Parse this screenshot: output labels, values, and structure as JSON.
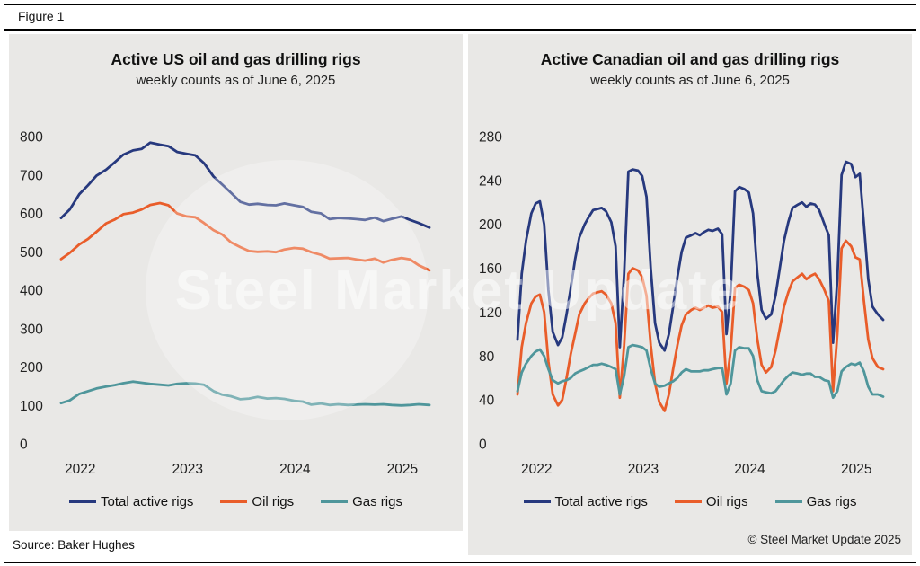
{
  "figure_label": "Figure 1",
  "source": "Source: Baker Hughes",
  "copyright": "© Steel Market Update 2025",
  "watermark": "Steel Market Update",
  "colors": {
    "total": "#27397e",
    "oil": "#e95d2a",
    "gas": "#4f969b",
    "panel_bg": "#e9e8e6"
  },
  "chart_data": [
    {
      "type": "line",
      "title": "Active US oil and gas drilling rigs",
      "subtitle": "weekly counts as of June 6, 2025",
      "xlabel": "",
      "ylabel": "",
      "xlim": [
        2022,
        2025.43
      ],
      "ylim": [
        0,
        800
      ],
      "x_ticks": [
        2022,
        2023,
        2024,
        2025
      ],
      "y_ticks": [
        0,
        100,
        200,
        300,
        400,
        500,
        600,
        700,
        800
      ],
      "grid": false,
      "legend_position": "bottom",
      "x": [
        2022.0,
        2022.08,
        2022.17,
        2022.25,
        2022.33,
        2022.42,
        2022.5,
        2022.58,
        2022.67,
        2022.75,
        2022.83,
        2022.92,
        2023.0,
        2023.08,
        2023.17,
        2023.25,
        2023.33,
        2023.42,
        2023.5,
        2023.58,
        2023.67,
        2023.75,
        2023.83,
        2023.92,
        2024.0,
        2024.08,
        2024.17,
        2024.25,
        2024.33,
        2024.42,
        2024.5,
        2024.58,
        2024.67,
        2024.75,
        2024.83,
        2024.92,
        2025.0,
        2025.08,
        2025.17,
        2025.25,
        2025.33,
        2025.43
      ],
      "series": [
        {
          "name": "Total active rigs",
          "color_key": "total",
          "values": [
            588,
            610,
            650,
            673,
            698,
            714,
            733,
            753,
            764,
            768,
            784,
            779,
            775,
            760,
            755,
            751,
            731,
            696,
            675,
            654,
            630,
            623,
            625,
            622,
            621,
            626,
            621,
            617,
            604,
            600,
            585,
            588,
            587,
            585,
            583,
            589,
            580,
            586,
            592,
            583,
            575,
            563
          ]
        },
        {
          "name": "Oil rigs",
          "color_key": "oil",
          "values": [
            481,
            497,
            519,
            533,
            552,
            574,
            584,
            598,
            602,
            610,
            622,
            627,
            621,
            600,
            592,
            590,
            575,
            556,
            545,
            525,
            512,
            502,
            500,
            501,
            499,
            506,
            510,
            508,
            499,
            492,
            482,
            483,
            484,
            480,
            477,
            482,
            472,
            479,
            484,
            480,
            465,
            452
          ]
        },
        {
          "name": "Gas rigs",
          "color_key": "gas",
          "values": [
            106,
            113,
            130,
            137,
            144,
            149,
            153,
            158,
            162,
            159,
            156,
            154,
            152,
            156,
            158,
            157,
            154,
            137,
            128,
            124,
            116,
            118,
            122,
            118,
            119,
            117,
            112,
            110,
            102,
            105,
            101,
            103,
            101,
            102,
            103,
            102,
            103,
            101,
            100,
            101,
            103,
            101
          ]
        }
      ]
    },
    {
      "type": "line",
      "title": "Active Canadian oil and gas drilling rigs",
      "subtitle": "weekly counts as of June 6, 2025",
      "xlabel": "",
      "ylabel": "",
      "xlim": [
        2022,
        2025.43
      ],
      "ylim": [
        0,
        280
      ],
      "x_ticks": [
        2022,
        2023,
        2024,
        2025
      ],
      "y_ticks": [
        0,
        40,
        80,
        120,
        160,
        200,
        240,
        280
      ],
      "grid": false,
      "legend_position": "bottom",
      "x": [
        2022.0,
        2022.04,
        2022.08,
        2022.13,
        2022.17,
        2022.21,
        2022.25,
        2022.29,
        2022.33,
        2022.38,
        2022.42,
        2022.46,
        2022.5,
        2022.54,
        2022.58,
        2022.63,
        2022.67,
        2022.71,
        2022.75,
        2022.79,
        2022.83,
        2022.88,
        2022.92,
        2022.96,
        2023.0,
        2023.04,
        2023.08,
        2023.13,
        2023.17,
        2023.21,
        2023.25,
        2023.29,
        2023.33,
        2023.38,
        2023.42,
        2023.46,
        2023.5,
        2023.54,
        2023.58,
        2023.63,
        2023.67,
        2023.71,
        2023.75,
        2023.79,
        2023.83,
        2023.88,
        2023.92,
        2023.96,
        2024.0,
        2024.04,
        2024.08,
        2024.13,
        2024.17,
        2024.21,
        2024.25,
        2024.29,
        2024.33,
        2024.38,
        2024.42,
        2024.46,
        2024.5,
        2024.54,
        2024.58,
        2024.63,
        2024.67,
        2024.71,
        2024.75,
        2024.79,
        2024.83,
        2024.88,
        2024.92,
        2024.96,
        2025.0,
        2025.04,
        2025.08,
        2025.13,
        2025.17,
        2025.21,
        2025.25,
        2025.29,
        2025.33,
        2025.38,
        2025.43
      ],
      "series": [
        {
          "name": "Total active rigs",
          "color_key": "total",
          "values": [
            95,
            155,
            185,
            210,
            219,
            221,
            200,
            140,
            102,
            90,
            97,
            118,
            142,
            168,
            188,
            200,
            207,
            213,
            214,
            215,
            212,
            202,
            180,
            88,
            155,
            248,
            250,
            249,
            244,
            225,
            160,
            110,
            92,
            85,
            100,
            125,
            152,
            175,
            188,
            190,
            192,
            190,
            193,
            195,
            194,
            196,
            191,
            100,
            140,
            230,
            234,
            232,
            229,
            210,
            155,
            122,
            114,
            118,
            135,
            160,
            185,
            202,
            215,
            218,
            220,
            216,
            219,
            218,
            213,
            200,
            190,
            92,
            150,
            245,
            257,
            255,
            243,
            246,
            200,
            150,
            125,
            118,
            113
          ]
        },
        {
          "name": "Oil rigs",
          "color_key": "oil",
          "values": [
            45,
            88,
            110,
            128,
            134,
            136,
            120,
            75,
            45,
            35,
            40,
            60,
            82,
            100,
            118,
            128,
            133,
            137,
            138,
            139,
            136,
            128,
            110,
            42,
            90,
            155,
            160,
            158,
            152,
            135,
            90,
            55,
            38,
            30,
            45,
            68,
            90,
            108,
            118,
            122,
            124,
            122,
            124,
            126,
            124,
            125,
            120,
            55,
            85,
            142,
            145,
            143,
            140,
            128,
            95,
            72,
            65,
            70,
            85,
            105,
            125,
            138,
            148,
            152,
            155,
            150,
            153,
            155,
            150,
            140,
            130,
            48,
            100,
            178,
            185,
            180,
            170,
            168,
            130,
            95,
            78,
            70,
            68
          ]
        },
        {
          "name": "Gas rigs",
          "color_key": "gas",
          "values": [
            48,
            65,
            73,
            80,
            84,
            86,
            80,
            68,
            58,
            55,
            57,
            58,
            60,
            64,
            66,
            68,
            70,
            72,
            72,
            73,
            72,
            70,
            68,
            45,
            62,
            88,
            90,
            89,
            88,
            85,
            68,
            55,
            52,
            53,
            55,
            57,
            60,
            65,
            68,
            66,
            66,
            66,
            67,
            67,
            68,
            69,
            69,
            45,
            55,
            85,
            88,
            87,
            87,
            80,
            58,
            48,
            47,
            46,
            48,
            53,
            58,
            62,
            65,
            64,
            63,
            64,
            64,
            61,
            61,
            58,
            57,
            42,
            48,
            66,
            70,
            73,
            72,
            74,
            66,
            52,
            45,
            45,
            43
          ]
        }
      ]
    }
  ]
}
